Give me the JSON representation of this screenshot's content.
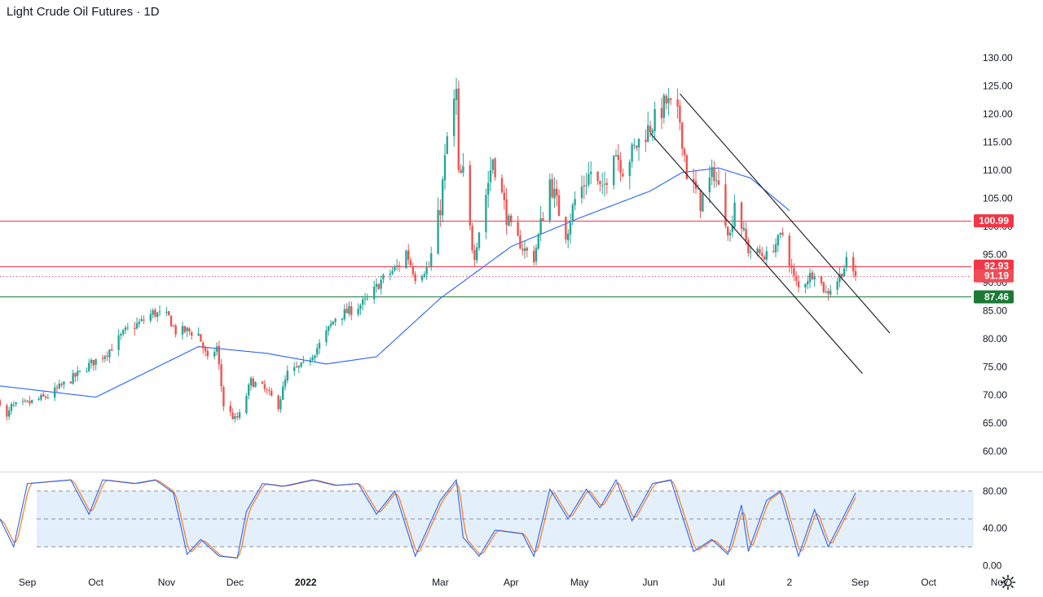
{
  "title": "Light Crude Oil Futures · 1D",
  "colors": {
    "up": "#26a69a",
    "down": "#ef5350",
    "sma": "#2962ff",
    "stoch_k": "#2962ff",
    "stoch_d": "#ff6d00",
    "resistance": "#f23645",
    "support": "#1b7a34",
    "channel": "#131722",
    "band": "#e3f0fc"
  },
  "icons": {
    "settings": "gear-icon"
  },
  "chart_data": {
    "type": "candlestick",
    "price_axis": {
      "range": [
        56.5,
        134.5
      ],
      "ticks": [
        "60.00",
        "65.00",
        "70.00",
        "75.00",
        "80.00",
        "85.00",
        "90.00",
        "95.00",
        "100.00",
        "105.00",
        "110.00",
        "115.00",
        "120.00",
        "125.00",
        "130.00"
      ]
    },
    "time_axis": {
      "labels": [
        "Sep",
        "Oct",
        "Nov",
        "Dec",
        "2022",
        "Mar",
        "Apr",
        "May",
        "Jun",
        "Jul",
        "2",
        "Sep",
        "Oct",
        "Nov"
      ],
      "start": "2021-08-20"
    },
    "price_labels": [
      {
        "text": "100.99",
        "value": 100.99,
        "kind": "resistance"
      },
      {
        "text": "92.93",
        "value": 92.93,
        "kind": "resistance"
      },
      {
        "text": "91.19",
        "value": 91.19,
        "kind": "last"
      },
      {
        "text": "87.46",
        "value": 87.46,
        "kind": "support"
      }
    ],
    "horizontal_lines": [
      {
        "value": 100.99,
        "kind": "resistance"
      },
      {
        "value": 92.93,
        "kind": "resistance"
      },
      {
        "value": 91.19,
        "kind": "last-dotted"
      },
      {
        "value": 87.46,
        "kind": "support"
      }
    ],
    "channel_lines": [
      {
        "from": {
          "date": "2022-06-01",
          "price": 116.6
        },
        "to": {
          "date": "2022-09-02",
          "price": 73.8
        }
      },
      {
        "from": {
          "date": "2022-06-14",
          "price": 123.6
        },
        "to": {
          "date": "2022-09-14",
          "price": 81.0
        }
      }
    ],
    "close_anchors": [
      [
        "2021-08-20",
        68.9
      ],
      [
        "2021-08-23",
        65.8
      ],
      [
        "2021-08-25",
        67.9
      ],
      [
        "2021-08-31",
        68.3
      ],
      [
        "2021-09-10",
        69.8
      ],
      [
        "2021-09-17",
        71.9
      ],
      [
        "2021-09-24",
        73.9
      ],
      [
        "2021-09-28",
        75.3
      ],
      [
        "2021-10-06",
        77.6
      ],
      [
        "2021-10-14",
        81.3
      ],
      [
        "2021-10-21",
        83.0
      ],
      [
        "2021-10-26",
        84.6
      ],
      [
        "2021-11-02",
        83.8
      ],
      [
        "2021-11-05",
        81.3
      ],
      [
        "2021-11-10",
        81.4
      ],
      [
        "2021-11-15",
        80.8
      ],
      [
        "2021-11-19",
        76.1
      ],
      [
        "2021-11-23",
        78.5
      ],
      [
        "2021-11-26",
        68.2
      ],
      [
        "2021-12-01",
        65.6
      ],
      [
        "2021-12-03",
        66.3
      ],
      [
        "2021-12-08",
        72.4
      ],
      [
        "2021-12-13",
        71.3
      ],
      [
        "2021-12-20",
        68.2
      ],
      [
        "2021-12-24",
        73.8
      ],
      [
        "2021-12-31",
        75.2
      ],
      [
        "2022-01-07",
        78.9
      ],
      [
        "2022-01-14",
        83.8
      ],
      [
        "2022-01-21",
        85.1
      ],
      [
        "2022-01-28",
        86.8
      ],
      [
        "2022-02-03",
        90.3
      ],
      [
        "2022-02-11",
        93.1
      ],
      [
        "2022-02-14",
        95.5
      ],
      [
        "2022-02-18",
        91.1
      ],
      [
        "2022-02-24",
        92.8
      ],
      [
        "2022-03-01",
        103.4
      ],
      [
        "2022-03-04",
        115.7
      ],
      [
        "2022-03-08",
        123.7
      ],
      [
        "2022-03-09",
        108.7
      ],
      [
        "2022-03-11",
        109.3
      ],
      [
        "2022-03-15",
        96.4
      ],
      [
        "2022-03-16",
        95.0
      ],
      [
        "2022-03-24",
        112.3
      ],
      [
        "2022-03-31",
        100.3
      ],
      [
        "2022-04-06",
        96.2
      ],
      [
        "2022-04-11",
        94.3
      ],
      [
        "2022-04-18",
        108.2
      ],
      [
        "2022-04-25",
        98.5
      ],
      [
        "2022-04-29",
        104.7
      ],
      [
        "2022-05-06",
        109.8
      ],
      [
        "2022-05-11",
        105.7
      ],
      [
        "2022-05-16",
        114.2
      ],
      [
        "2022-05-20",
        110.3
      ],
      [
        "2022-05-27",
        115.1
      ],
      [
        "2022-06-03",
        118.9
      ],
      [
        "2022-06-08",
        122.1
      ],
      [
        "2022-06-14",
        118.9
      ],
      [
        "2022-06-17",
        109.6
      ],
      [
        "2022-06-23",
        104.3
      ],
      [
        "2022-06-29",
        109.8
      ],
      [
        "2022-07-06",
        98.5
      ],
      [
        "2022-07-08",
        104.8
      ],
      [
        "2022-07-14",
        95.8
      ],
      [
        "2022-07-22",
        94.7
      ],
      [
        "2022-07-29",
        98.6
      ],
      [
        "2022-08-03",
        90.7
      ],
      [
        "2022-08-05",
        89.0
      ],
      [
        "2022-08-12",
        92.1
      ],
      [
        "2022-08-17",
        88.1
      ],
      [
        "2022-08-22",
        90.4
      ],
      [
        "2022-08-26",
        93.6
      ],
      [
        "2022-08-30",
        91.2
      ]
    ],
    "sma_anchors": [
      [
        "2021-08-20",
        71.6
      ],
      [
        "2021-10-01",
        69.6
      ],
      [
        "2021-11-15",
        78.6
      ],
      [
        "2021-12-15",
        77.4
      ],
      [
        "2022-01-10",
        75.5
      ],
      [
        "2022-02-01",
        76.8
      ],
      [
        "2022-03-01",
        87.2
      ],
      [
        "2022-04-01",
        96.4
      ],
      [
        "2022-05-01",
        101.5
      ],
      [
        "2022-06-01",
        106.3
      ],
      [
        "2022-06-15",
        109.6
      ],
      [
        "2022-07-01",
        110.4
      ],
      [
        "2022-07-15",
        108.6
      ],
      [
        "2022-08-01",
        102.8
      ]
    ],
    "stochastic": {
      "range": [
        -5,
        100
      ],
      "ticks": [
        "0.00",
        "40.00",
        "80.00"
      ],
      "bands": [
        20,
        50,
        80
      ],
      "k_anchors": [
        [
          "2021-08-20",
          50
        ],
        [
          "2021-08-26",
          20
        ],
        [
          "2021-09-01",
          88
        ],
        [
          "2021-09-20",
          92
        ],
        [
          "2021-09-28",
          55
        ],
        [
          "2021-10-04",
          92
        ],
        [
          "2021-10-18",
          88
        ],
        [
          "2021-10-27",
          92
        ],
        [
          "2021-11-04",
          78
        ],
        [
          "2021-11-10",
          12
        ],
        [
          "2021-11-16",
          28
        ],
        [
          "2021-11-24",
          10
        ],
        [
          "2021-12-02",
          8
        ],
        [
          "2021-12-06",
          58
        ],
        [
          "2021-12-13",
          88
        ],
        [
          "2021-12-22",
          85
        ],
        [
          "2022-01-04",
          92
        ],
        [
          "2022-01-14",
          86
        ],
        [
          "2022-01-24",
          88
        ],
        [
          "2022-02-01",
          55
        ],
        [
          "2022-02-09",
          80
        ],
        [
          "2022-02-18",
          10
        ],
        [
          "2022-03-01",
          70
        ],
        [
          "2022-03-08",
          92
        ],
        [
          "2022-03-11",
          30
        ],
        [
          "2022-03-18",
          10
        ],
        [
          "2022-03-25",
          38
        ],
        [
          "2022-04-06",
          34
        ],
        [
          "2022-04-11",
          10
        ],
        [
          "2022-04-18",
          82
        ],
        [
          "2022-04-26",
          50
        ],
        [
          "2022-05-04",
          82
        ],
        [
          "2022-05-10",
          62
        ],
        [
          "2022-05-17",
          92
        ],
        [
          "2022-05-24",
          48
        ],
        [
          "2022-06-02",
          88
        ],
        [
          "2022-06-10",
          92
        ],
        [
          "2022-06-20",
          15
        ],
        [
          "2022-06-28",
          28
        ],
        [
          "2022-07-05",
          12
        ],
        [
          "2022-07-11",
          65
        ],
        [
          "2022-07-14",
          15
        ],
        [
          "2022-07-22",
          70
        ],
        [
          "2022-07-28",
          80
        ],
        [
          "2022-08-05",
          10
        ],
        [
          "2022-08-12",
          60
        ],
        [
          "2022-08-18",
          20
        ],
        [
          "2022-08-30",
          78
        ]
      ]
    }
  }
}
